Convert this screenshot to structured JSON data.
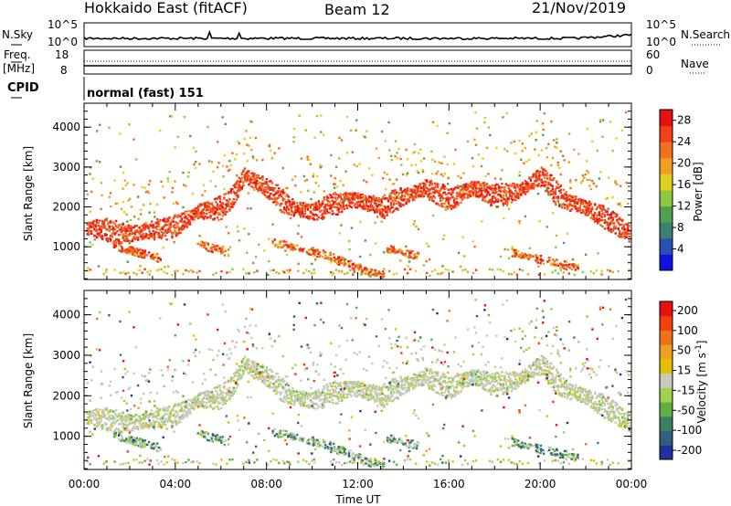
{
  "header": {
    "title": "Hokkaido East (fitACF)",
    "beam": "Beam 12",
    "date": "21/Nov/2019"
  },
  "top_panel": {
    "nsky_label": "N.Sky",
    "nsearch_label": "N.Search",
    "nsky_ticks": [
      "10^5",
      "10^0"
    ],
    "nsearch_ticks": [
      "10^5",
      "10^0"
    ]
  },
  "freq_panel": {
    "freq_label": "Freq.",
    "freq_unit": "[MHz]",
    "freq_ticks": [
      "18",
      "8"
    ],
    "nave_label": "Nave",
    "nave_ticks": [
      "60",
      "0"
    ]
  },
  "cpid_panel": {
    "cpid_label": "CPID",
    "mode_text": "normal (fast) 151"
  },
  "chart_data": [
    {
      "type": "heatmap",
      "name": "power",
      "ylabel": "Slant Range [km]",
      "ylim": [
        180,
        4600
      ],
      "yticks": [
        1000,
        2000,
        3000,
        4000
      ],
      "x": [
        "00:00",
        "04:00",
        "08:00",
        "12:00",
        "16:00",
        "20:00",
        "00:00"
      ],
      "xlim_hours": [
        0,
        24
      ],
      "colorbar": {
        "label": "Power [dB]",
        "ticks": [
          "4",
          "8",
          "12",
          "16",
          "20",
          "24",
          "28"
        ],
        "range": [
          0,
          30
        ],
        "colors": [
          "#1010e0",
          "#2850b8",
          "#3c8070",
          "#50a050",
          "#90c840",
          "#e0d020",
          "#f0a020",
          "#f07020",
          "#f04018",
          "#e81010"
        ]
      },
      "main_echo_ridge_km": [
        [
          0.0,
          1500
        ],
        [
          1.0,
          1450
        ],
        [
          2.0,
          1350
        ],
        [
          3.0,
          1450
        ],
        [
          4.0,
          1550
        ],
        [
          5.0,
          1900
        ],
        [
          6.0,
          2000
        ],
        [
          6.5,
          2300
        ],
        [
          7.0,
          2800
        ],
        [
          8.0,
          2500
        ],
        [
          9.0,
          2000
        ],
        [
          10.0,
          1900
        ],
        [
          11.0,
          2100
        ],
        [
          12.0,
          2200
        ],
        [
          13.0,
          2000
        ],
        [
          14.0,
          2300
        ],
        [
          15.0,
          2500
        ],
        [
          16.0,
          2200
        ],
        [
          17.0,
          2500
        ],
        [
          18.0,
          2300
        ],
        [
          19.0,
          2400
        ],
        [
          20.0,
          2800
        ],
        [
          21.0,
          2200
        ],
        [
          22.0,
          2000
        ],
        [
          23.0,
          1700
        ],
        [
          24.0,
          1300
        ]
      ]
    },
    {
      "type": "heatmap",
      "name": "velocity",
      "ylabel": "Slant Range [km]",
      "xlabel": "Time UT",
      "ylim": [
        180,
        4600
      ],
      "yticks": [
        1000,
        2000,
        3000,
        4000
      ],
      "x": [
        "00:00",
        "04:00",
        "08:00",
        "12:00",
        "16:00",
        "20:00",
        "00:00"
      ],
      "xlim_hours": [
        0,
        24
      ],
      "colorbar": {
        "label": "Velocity [m s-1]",
        "label_main": "Velocity [m s",
        "label_sup": "-1",
        "label_close": "]",
        "ticks": [
          "200",
          "100",
          "50",
          "15",
          "-15",
          "-50",
          "-100",
          "-200"
        ],
        "colors": [
          "#2030a0",
          "#306080",
          "#3a8060",
          "#60b040",
          "#a0d050",
          "#c8c8c0",
          "#e0c000",
          "#f0a020",
          "#f07018",
          "#f04010",
          "#e81010"
        ]
      }
    }
  ]
}
